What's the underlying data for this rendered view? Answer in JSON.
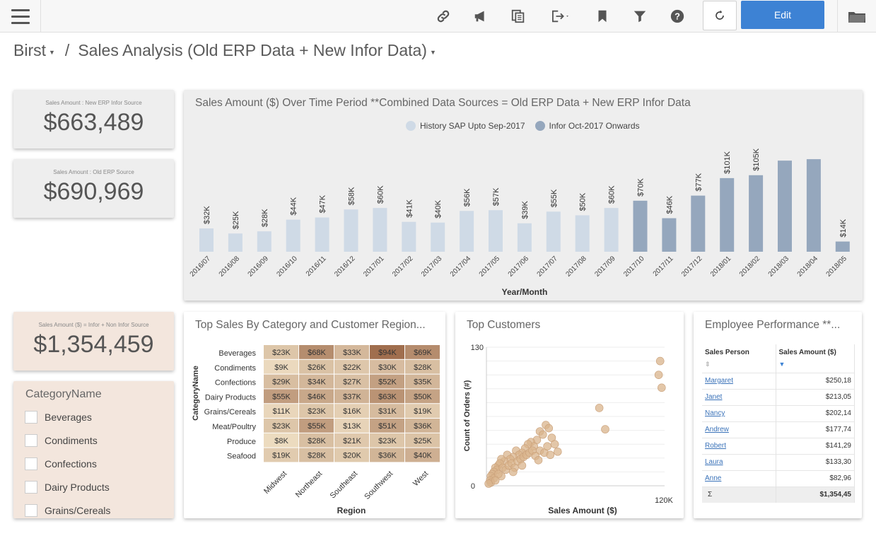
{
  "header": {
    "edit_label": "Edit",
    "icons": [
      "link-icon",
      "announce-icon",
      "copy-icon",
      "export-icon",
      "bookmark-icon",
      "filter-icon",
      "help-icon",
      "refresh-icon",
      "folder-icon"
    ]
  },
  "breadcrumb": {
    "root": "Birst",
    "separator": "/",
    "page": "Sales Analysis (Old ERP Data + New Infor Data)"
  },
  "kpis": [
    {
      "label": "Sales Amount : New ERP Infor Source",
      "value": "$663,489"
    },
    {
      "label": "Sales Amount : Old ERP Source",
      "value": "$690,969"
    },
    {
      "label": "Sales Amount ($) = Infor + Non Infor Source",
      "value": "$1,354,459"
    }
  ],
  "filter": {
    "title": "CategoryName",
    "items": [
      "Beverages",
      "Condiments",
      "Confections",
      "Dairy Products",
      "Grains/Cereals"
    ]
  },
  "colors": {
    "history": "#cfdae6",
    "infor": "#95a7bd",
    "edit_button": "#3d82d4",
    "link": "#3b73b9"
  },
  "bar_panel": {
    "title": "Sales Amount ($) Over Time Period **Combined Data Sources = Old ERP Data + New ERP Infor Data"
  },
  "chart_data": [
    {
      "type": "bar",
      "title": "Sales Amount ($) Over Time Period **Combined Data Sources = Old ERP Data + New ERP Infor Data",
      "xlabel": "Year/Month",
      "ylabel": "",
      "legend": "top-center",
      "series": [
        {
          "name": "History SAP Upto Sep-2017",
          "color": "#cfdae6"
        },
        {
          "name": "Infor Oct-2017 Onwards",
          "color": "#95a7bd"
        }
      ],
      "categories": [
        "2016/07",
        "2016/08",
        "2016/09",
        "2016/10",
        "2016/11",
        "2016/12",
        "2017/01",
        "2017/02",
        "2017/03",
        "2017/04",
        "2017/05",
        "2017/06",
        "2017/07",
        "2017/08",
        "2017/09",
        "2017/10",
        "2017/11",
        "2017/12",
        "2018/01",
        "2018/02",
        "2018/03",
        "2018/04",
        "2018/05"
      ],
      "values": [
        32,
        25,
        28,
        44,
        47,
        58,
        60,
        41,
        40,
        56,
        57,
        39,
        55,
        50,
        60,
        70,
        46,
        77,
        101,
        105,
        125,
        127,
        14
      ],
      "series_index": [
        0,
        0,
        0,
        0,
        0,
        0,
        0,
        0,
        0,
        0,
        0,
        0,
        0,
        0,
        0,
        1,
        1,
        1,
        1,
        1,
        1,
        1,
        1
      ],
      "labels": [
        "$32K",
        "$25K",
        "$28K",
        "$44K",
        "$47K",
        "$58K",
        "$60K",
        "$41K",
        "$40K",
        "$56K",
        "$57K",
        "$39K",
        "$55K",
        "$50K",
        "$60K",
        "$70K",
        "$46K",
        "$77K",
        "$101K",
        "$105K",
        "",
        "",
        "$14K"
      ],
      "unit": "K"
    },
    {
      "type": "heatmap",
      "title": "Top Sales By Category and Customer Region...",
      "xlabel": "Region",
      "ylabel": "CategoryName",
      "x": [
        "Midwest",
        "Northeast",
        "Southeast",
        "Southwest",
        "West"
      ],
      "y": [
        "Beverages",
        "Condiments",
        "Confections",
        "Dairy Products",
        "Grains/Cereals",
        "Meat/Poultry",
        "Produce",
        "Seafood"
      ],
      "values": [
        [
          23,
          68,
          33,
          94,
          69
        ],
        [
          9,
          26,
          22,
          30,
          28
        ],
        [
          29,
          34,
          27,
          52,
          35
        ],
        [
          55,
          46,
          37,
          63,
          50
        ],
        [
          11,
          23,
          16,
          31,
          19
        ],
        [
          23,
          55,
          13,
          51,
          36
        ],
        [
          8,
          28,
          21,
          23,
          25
        ],
        [
          19,
          28,
          20,
          36,
          40
        ]
      ],
      "labels": [
        [
          "$23K",
          "$68K",
          "$33K",
          "$94K",
          "$69K"
        ],
        [
          "$9K",
          "$26K",
          "$22K",
          "$30K",
          "$28K"
        ],
        [
          "$29K",
          "$34K",
          "$27K",
          "$52K",
          "$35K"
        ],
        [
          "$55K",
          "$46K",
          "$37K",
          "$63K",
          "$50K"
        ],
        [
          "$11K",
          "$23K",
          "$16K",
          "$31K",
          "$19K"
        ],
        [
          "$23K",
          "$55K",
          "$13K",
          "$51K",
          "$36K"
        ],
        [
          "$8K",
          "$28K",
          "$21K",
          "$23K",
          "$25K"
        ],
        [
          "$19K",
          "$28K",
          "$20K",
          "$36K",
          "$40K"
        ]
      ]
    },
    {
      "type": "scatter",
      "title": "Top Customers",
      "xlabel": "Sales Amount ($)",
      "ylabel": "Count of Orders (#)",
      "xlim": [
        0,
        120000
      ],
      "ylim": [
        0,
        130
      ],
      "xticks": [
        "120K"
      ],
      "yticks": [
        "0",
        "130"
      ],
      "points": [
        [
          117000,
          117
        ],
        [
          116000,
          104
        ],
        [
          118000,
          92
        ],
        [
          76000,
          73
        ],
        [
          80000,
          53
        ],
        [
          40000,
          57
        ],
        [
          42000,
          54
        ],
        [
          36000,
          51
        ],
        [
          38000,
          48
        ],
        [
          44000,
          45
        ],
        [
          46000,
          39
        ],
        [
          34000,
          43
        ],
        [
          30000,
          41
        ],
        [
          32000,
          37
        ],
        [
          28000,
          39
        ],
        [
          26000,
          35
        ],
        [
          36000,
          33
        ],
        [
          24000,
          31
        ],
        [
          20000,
          33
        ],
        [
          22000,
          29
        ],
        [
          18000,
          27
        ],
        [
          14000,
          29
        ],
        [
          16000,
          25
        ],
        [
          12000,
          23
        ],
        [
          10000,
          25
        ],
        [
          8000,
          19
        ],
        [
          9000,
          21
        ],
        [
          6000,
          17
        ],
        [
          7000,
          15
        ],
        [
          5000,
          13
        ],
        [
          4000,
          11
        ],
        [
          3000,
          9
        ],
        [
          5000,
          7
        ],
        [
          2500,
          5
        ],
        [
          3000,
          3
        ],
        [
          1500,
          2
        ],
        [
          11000,
          17
        ],
        [
          13000,
          15
        ],
        [
          15000,
          19
        ],
        [
          17000,
          21
        ],
        [
          19000,
          17
        ],
        [
          21000,
          23
        ],
        [
          23000,
          25
        ],
        [
          25000,
          27
        ],
        [
          27000,
          29
        ],
        [
          29000,
          31
        ],
        [
          31000,
          33
        ],
        [
          24000,
          19
        ],
        [
          18000,
          13
        ],
        [
          10000,
          9
        ],
        [
          8000,
          11
        ],
        [
          6000,
          5
        ],
        [
          33000,
          28
        ],
        [
          35000,
          24
        ],
        [
          39000,
          31
        ],
        [
          41000,
          37
        ],
        [
          43000,
          29
        ],
        [
          48000,
          32
        ]
      ]
    }
  ],
  "heatmap_panel": {
    "title": "Top Sales By Category and Customer Region..."
  },
  "scatter_panel": {
    "title": "Top Customers"
  },
  "employee_panel": {
    "title": "Employee Performance **...",
    "columns": [
      "Sales Person",
      "Sales Amount ($)"
    ],
    "rows": [
      {
        "name": "Margaret",
        "amount": "$250,18"
      },
      {
        "name": "Janet",
        "amount": "$213,05"
      },
      {
        "name": "Nancy",
        "amount": "$202,14"
      },
      {
        "name": "Andrew",
        "amount": "$177,74"
      },
      {
        "name": "Robert",
        "amount": "$141,29"
      },
      {
        "name": "Laura",
        "amount": "$133,30"
      },
      {
        "name": "Anne",
        "amount": "$82,96"
      }
    ],
    "total_symbol": "Σ",
    "total_amount": "$1,354,45"
  }
}
